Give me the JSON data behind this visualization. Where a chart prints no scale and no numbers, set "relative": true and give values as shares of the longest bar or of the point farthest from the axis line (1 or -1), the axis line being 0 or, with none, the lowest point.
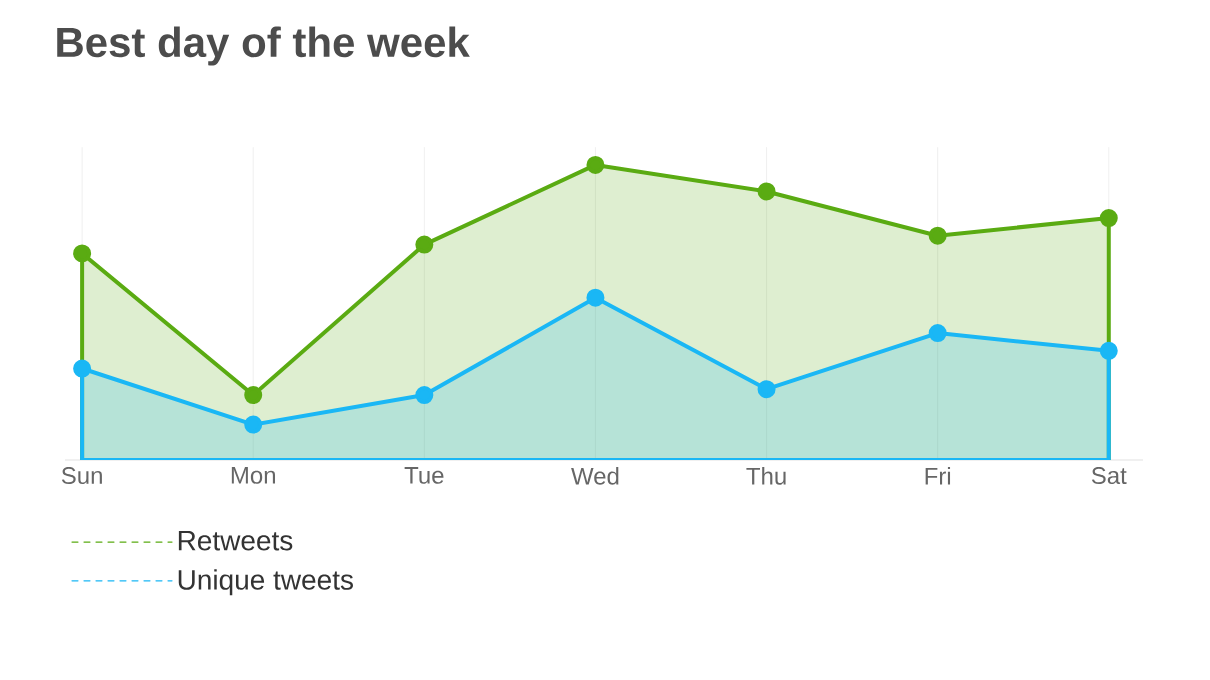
{
  "chart_data": {
    "type": "area",
    "title": "Best day of the week",
    "relative": true,
    "categories": [
      "Sun",
      "Mon",
      "Tue",
      "Wed",
      "Thu",
      "Fri",
      "Sat"
    ],
    "series": [
      {
        "name": "Retweets",
        "color": "#5aab12",
        "values": [
          0.7,
          0.22,
          0.73,
          1,
          0.91,
          0.76,
          0.82
        ]
      },
      {
        "name": "Unique tweets",
        "color": "#1ab7f5",
        "values": [
          0.31,
          0.12,
          0.22,
          0.55,
          0.24,
          0.43,
          0.37
        ]
      }
    ],
    "grid": true,
    "legend": "bottom left",
    "marker": "circle",
    "line_style": "solid"
  }
}
